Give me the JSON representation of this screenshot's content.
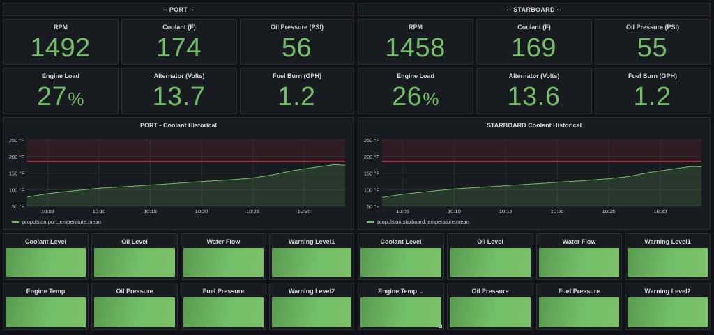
{
  "port": {
    "header": "-- PORT --",
    "stats": [
      {
        "title": "RPM",
        "value": "1492",
        "unit": ""
      },
      {
        "title": "Coolant (F)",
        "value": "174",
        "unit": ""
      },
      {
        "title": "Oil Pressure (PSI)",
        "value": "56",
        "unit": ""
      },
      {
        "title": "Engine Load",
        "value": "27",
        "unit": "%"
      },
      {
        "title": "Alternator (Volts)",
        "value": "13.7",
        "unit": ""
      },
      {
        "title": "Fuel Burn (GPH)",
        "value": "1.2",
        "unit": ""
      }
    ],
    "chart_title": "PORT - Coolant Historical",
    "legend": "propulsion.port.temperature.mean",
    "indicators_row1": [
      "Coolant Level",
      "Oil Level",
      "Water Flow",
      "Warning Level1"
    ],
    "indicators_row2": [
      "Engine Temp",
      "Oil Pressure",
      "Fuel Pressure",
      "Warning Level2"
    ]
  },
  "starboard": {
    "header": "-- STARBOARD --",
    "stats": [
      {
        "title": "RPM",
        "value": "1458",
        "unit": ""
      },
      {
        "title": "Coolant (F)",
        "value": "169",
        "unit": ""
      },
      {
        "title": "Oil Pressure (PSI)",
        "value": "55",
        "unit": ""
      },
      {
        "title": "Engine Load",
        "value": "26",
        "unit": "%"
      },
      {
        "title": "Alternator (Volts)",
        "value": "13.6",
        "unit": ""
      },
      {
        "title": "Fuel Burn (GPH)",
        "value": "1.2",
        "unit": ""
      }
    ],
    "chart_title": "STARBOARD Coolant Historical",
    "legend": "propulsion.starboard.temperature.mean",
    "indicators_row1": [
      "Coolant Level",
      "Oil Level",
      "Water Flow",
      "Warning Level1"
    ],
    "indicators_row2": [
      "Engine Temp",
      "Oil Pressure",
      "Fuel Pressure",
      "Warning Level2"
    ]
  },
  "colors": {
    "value_green": "#73bf69",
    "threshold_red": "#e02f44",
    "panel_bg": "#181b1f",
    "page_bg": "#111217"
  },
  "chart_data": [
    {
      "type": "area",
      "title": "PORT - Coolant Historical",
      "ylabel": "",
      "xlabel": "",
      "yticks": [
        "50 °F",
        "100 °F",
        "150 °F",
        "200 °F",
        "250 °F"
      ],
      "xticks": [
        "10:05",
        "10:10",
        "10:15",
        "10:20",
        "10:25",
        "10:30"
      ],
      "ylim": [
        50,
        250
      ],
      "xlim": [
        "10:03",
        "10:34"
      ],
      "threshold": 185,
      "series": [
        {
          "name": "propulsion.port.temperature.mean",
          "x": [
            "10:03",
            "10:05",
            "10:07",
            "10:10",
            "10:13",
            "10:15",
            "10:18",
            "10:20",
            "10:23",
            "10:25",
            "10:27",
            "10:29",
            "10:31",
            "10:33",
            "10:34"
          ],
          "y": [
            78,
            88,
            95,
            104,
            110,
            114,
            120,
            124,
            130,
            135,
            145,
            158,
            167,
            176,
            174
          ]
        }
      ]
    },
    {
      "type": "area",
      "title": "STARBOARD Coolant Historical",
      "ylabel": "",
      "xlabel": "",
      "yticks": [
        "50 °F",
        "100 °F",
        "150 °F",
        "200 °F",
        "250 °F"
      ],
      "xticks": [
        "10:05",
        "10:10",
        "10:15",
        "10:20",
        "10:25",
        "10:30"
      ],
      "ylim": [
        50,
        250
      ],
      "xlim": [
        "10:03",
        "10:34"
      ],
      "threshold": 185,
      "series": [
        {
          "name": "propulsion.starboard.temperature.mean",
          "x": [
            "10:03",
            "10:05",
            "10:07",
            "10:10",
            "10:13",
            "10:15",
            "10:18",
            "10:20",
            "10:23",
            "10:25",
            "10:27",
            "10:29",
            "10:31",
            "10:33",
            "10:34"
          ],
          "y": [
            77,
            86,
            93,
            102,
            108,
            112,
            118,
            122,
            128,
            133,
            140,
            152,
            161,
            170,
            169
          ]
        }
      ]
    }
  ]
}
